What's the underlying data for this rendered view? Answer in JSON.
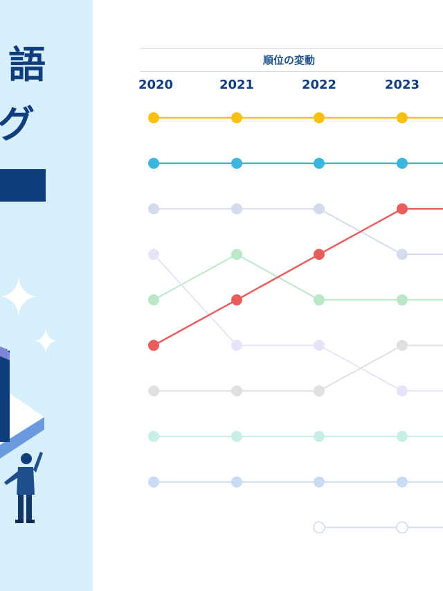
{
  "left_panel": {
    "title_line1": "語",
    "title_line2": "グ",
    "background": "#d6effb",
    "title_color": "#103d7d"
  },
  "chart_data": {
    "type": "line",
    "title": "順位の変動",
    "x": [
      "2020",
      "2021",
      "2022",
      "2023"
    ],
    "y_axis": "rank (1 = top), inverted",
    "series": [
      {
        "color": "#f9c012",
        "ranks": [
          1,
          1,
          1,
          1
        ]
      },
      {
        "color": "#3bb7df",
        "ranks": [
          2,
          2,
          2,
          2
        ]
      },
      {
        "color": "#e85c5c",
        "ranks": [
          6,
          5,
          4,
          3
        ]
      },
      {
        "color": "#d3dbec",
        "ranks": [
          3,
          3,
          3,
          4
        ]
      },
      {
        "color": "#b9e7c8",
        "ranks": [
          5,
          4,
          5,
          5
        ]
      },
      {
        "color": "#e7e3f8",
        "ranks": [
          4,
          6,
          6,
          7
        ]
      },
      {
        "color": "#e0e0e0",
        "ranks": [
          7,
          7,
          7,
          6
        ]
      },
      {
        "color": "#c7efe6",
        "ranks": [
          8,
          8,
          8,
          8
        ]
      },
      {
        "color": "#c8daf4",
        "ranks": [
          9,
          9,
          9,
          9
        ]
      },
      {
        "color": "#d3dbec",
        "ranks": [
          null,
          null,
          10,
          10
        ],
        "hollow": true
      }
    ]
  }
}
